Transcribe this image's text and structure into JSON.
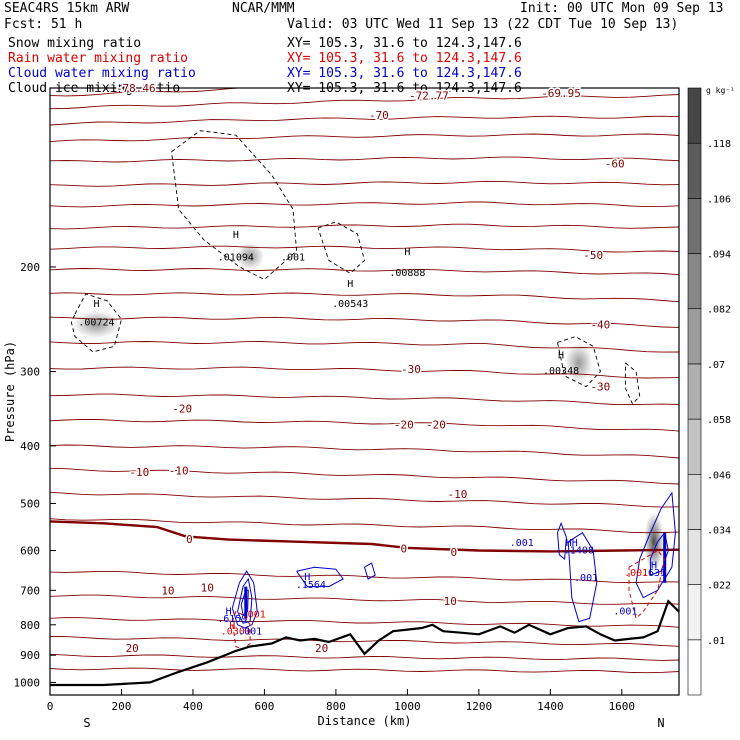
{
  "header": {
    "model": "SEAC4RS 15km ARW",
    "org": "NCAR/MMM",
    "init": "Init: 00 UTC Mon 09 Sep 13",
    "fcst": "Fcst:   51 h",
    "valid": "Valid: 03 UTC Wed 11 Sep 13 (22 CDT Tue 10 Sep 13)",
    "fields": [
      {
        "label": "Snow mixing ratio",
        "xy": "XY= 105.3, 31.6 to 124.3,147.6",
        "color": "#000000"
      },
      {
        "label": "Rain water mixing ratio",
        "xy": "XY= 105.3, 31.6 to 124.3,147.6",
        "color": "#dd0000"
      },
      {
        "label": "Cloud water mixing ratio",
        "xy": "XY= 105.3, 31.6 to 124.3,147.6",
        "color": "#0000cc"
      },
      {
        "label": "Cloud ice mixing ratio",
        "xy": "XY= 105.3, 31.6 to 124.3,147.6",
        "color": "#000000"
      }
    ]
  },
  "chart_data": {
    "type": "contour-cross-section",
    "xlabel": "Distance (km)",
    "ylabel": "Pressure (hPa)",
    "xlim": [
      0,
      1760
    ],
    "ylim": [
      1050,
      100
    ],
    "x_ticks": [
      0,
      200,
      400,
      600,
      800,
      1000,
      1200,
      1400,
      1600
    ],
    "y_ticks": [
      200,
      300,
      400,
      500,
      600,
      700,
      800,
      900,
      1000
    ],
    "y_scale": "log",
    "end_labels": {
      "left": "S",
      "right": "N"
    },
    "colorbar": {
      "unit": "g kg⁻¹",
      "levels": [
        ".01",
        ".022",
        ".034",
        ".046",
        ".058",
        ".07",
        ".082",
        ".094",
        ".106",
        ".118"
      ],
      "colors": [
        "#ffffff",
        "#f2f2f2",
        "#e4e4e4",
        "#d4d4d4",
        "#c3c3c3",
        "#b0b0b0",
        "#9c9c9c",
        "#878787",
        "#707070",
        "#5c5c5c",
        "#464646"
      ]
    },
    "temperature_isotherms": {
      "color": "#800000",
      "labels": [
        {
          "text": "-78.46",
          "x": 240,
          "p": 100
        },
        {
          "text": "-70",
          "x": 920,
          "p": 111
        },
        {
          "text": "-72.77",
          "x": 1060,
          "p": 103
        },
        {
          "text": "-69.95",
          "x": 1430,
          "p": 102
        },
        {
          "text": "-60",
          "x": 1580,
          "p": 134
        },
        {
          "text": "-50",
          "x": 1520,
          "p": 191
        },
        {
          "text": "-40",
          "x": 1540,
          "p": 250
        },
        {
          "text": "-30",
          "x": 1010,
          "p": 297
        },
        {
          "text": "-30",
          "x": 1540,
          "p": 318
        },
        {
          "text": "-20",
          "x": 370,
          "p": 346
        },
        {
          "text": "-20",
          "x": 990,
          "p": 368
        },
        {
          "text": "-20",
          "x": 1080,
          "p": 368
        },
        {
          "text": "-10",
          "x": 250,
          "p": 443
        },
        {
          "text": "-10",
          "x": 360,
          "p": 440
        },
        {
          "text": "-10",
          "x": 1140,
          "p": 482
        },
        {
          "text": "0",
          "x": 390,
          "p": 574
        },
        {
          "text": "0",
          "x": 990,
          "p": 595
        },
        {
          "text": "0",
          "x": 1130,
          "p": 603
        },
        {
          "text": "10",
          "x": 330,
          "p": 700
        },
        {
          "text": "10",
          "x": 440,
          "p": 693
        },
        {
          "text": "10",
          "x": 1120,
          "p": 729
        },
        {
          "text": "20",
          "x": 230,
          "p": 875
        },
        {
          "text": "20",
          "x": 760,
          "p": 875
        }
      ]
    },
    "maxima_labels": [
      {
        "text": "H",
        "x": 130,
        "p": 230,
        "color": "#000000"
      },
      {
        "text": ".00724",
        "x": 130,
        "p": 247,
        "color": "#000000"
      },
      {
        "text": "H",
        "x": 520,
        "p": 176,
        "color": "#000000"
      },
      {
        "text": ".01094",
        "x": 520,
        "p": 192,
        "color": "#000000"
      },
      {
        "text": ".001",
        "x": 680,
        "p": 192,
        "color": "#000000"
      },
      {
        "text": "H",
        "x": 840,
        "p": 213,
        "color": "#000000"
      },
      {
        "text": ".00543",
        "x": 840,
        "p": 230,
        "color": "#000000"
      },
      {
        "text": "H",
        "x": 1000,
        "p": 188,
        "color": "#000000"
      },
      {
        "text": ".00888",
        "x": 1000,
        "p": 204,
        "color": "#000000"
      },
      {
        "text": "H",
        "x": 1430,
        "p": 281,
        "color": "#000000"
      },
      {
        "text": ".00348",
        "x": 1430,
        "p": 298,
        "color": "#000000"
      },
      {
        "text": ".001",
        "x": 1320,
        "p": 581,
        "color": "#0000cc"
      },
      {
        "text": "HH",
        "x": 1460,
        "p": 581,
        "color": "#0000cc"
      },
      {
        "text": ".1408",
        "x": 1480,
        "p": 598,
        "color": "#0000cc"
      },
      {
        "text": "H",
        "x": 720,
        "p": 662,
        "color": "#0000cc"
      },
      {
        "text": ".1564",
        "x": 730,
        "p": 683,
        "color": "#0000cc"
      },
      {
        "text": ".001",
        "x": 1500,
        "p": 665,
        "color": "#0000cc"
      },
      {
        "text": "H",
        "x": 1690,
        "p": 633,
        "color": "#0000cc"
      },
      {
        "text": ".631",
        "x": 1690,
        "p": 652,
        "color": "#0000cc"
      },
      {
        "text": "H",
        "x": 500,
        "p": 757,
        "color": "#0000cc"
      },
      {
        "text": ".6159",
        "x": 510,
        "p": 779,
        "color": "#0000cc"
      },
      {
        "text": ".001",
        "x": 570,
        "p": 765,
        "color": "#dd0000"
      },
      {
        "text": "H",
        "x": 510,
        "p": 800,
        "color": "#dd0000"
      },
      {
        "text": ".0301",
        "x": 520,
        "p": 818,
        "color": "#dd0000"
      },
      {
        "text": ".001",
        "x": 560,
        "p": 818,
        "color": "#0000cc"
      },
      {
        "text": ".001",
        "x": 1610,
        "p": 757,
        "color": "#0000cc"
      },
      {
        "text": ".001",
        "x": 1640,
        "p": 652,
        "color": "#dd0000"
      }
    ]
  }
}
